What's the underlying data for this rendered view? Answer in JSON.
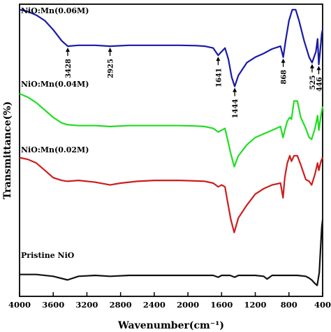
{
  "chart_data": {
    "type": "line",
    "xlabel": "Wavenumber(cm⁻¹)",
    "ylabel": "Transmittance(%)",
    "xlim": [
      4000,
      400
    ],
    "x_reversed": true,
    "x_ticks": [
      4000,
      3600,
      3200,
      2800,
      2400,
      2000,
      1600,
      1200,
      800,
      400
    ],
    "y_ticks": false,
    "grid": false,
    "series": [
      {
        "name": "NiO:Mn(0.06M)",
        "color": "#1a1aa6",
        "points": [
          [
            4000,
            97
          ],
          [
            3900,
            96
          ],
          [
            3800,
            94
          ],
          [
            3700,
            91
          ],
          [
            3600,
            86
          ],
          [
            3500,
            80
          ],
          [
            3428,
            77
          ],
          [
            3300,
            77.5
          ],
          [
            3100,
            77.5
          ],
          [
            2925,
            77
          ],
          [
            2700,
            77.5
          ],
          [
            2400,
            77.5
          ],
          [
            2100,
            77.5
          ],
          [
            1900,
            77.3
          ],
          [
            1800,
            77
          ],
          [
            1700,
            76
          ],
          [
            1641,
            72
          ],
          [
            1600,
            74
          ],
          [
            1560,
            76
          ],
          [
            1520,
            70
          ],
          [
            1480,
            60
          ],
          [
            1444,
            55
          ],
          [
            1400,
            61
          ],
          [
            1300,
            68
          ],
          [
            1200,
            71
          ],
          [
            1100,
            73
          ],
          [
            1000,
            75.5
          ],
          [
            900,
            77
          ],
          [
            868,
            71
          ],
          [
            840,
            80
          ],
          [
            800,
            91
          ],
          [
            760,
            97
          ],
          [
            720,
            97
          ],
          [
            680,
            91
          ],
          [
            620,
            80
          ],
          [
            560,
            71
          ],
          [
            525,
            68
          ],
          [
            480,
            74
          ],
          [
            460,
            81
          ],
          [
            446,
            67
          ],
          [
            430,
            74
          ],
          [
            410,
            84
          ],
          [
            400,
            86
          ]
        ]
      },
      {
        "name": "NiO:Mn(0.04M)",
        "color": "#22dd22",
        "points": [
          [
            4000,
            51
          ],
          [
            3900,
            49
          ],
          [
            3800,
            46
          ],
          [
            3700,
            42
          ],
          [
            3600,
            38
          ],
          [
            3500,
            35
          ],
          [
            3430,
            34
          ],
          [
            3300,
            33.5
          ],
          [
            3100,
            33.5
          ],
          [
            2925,
            33
          ],
          [
            2700,
            33.5
          ],
          [
            2400,
            33.5
          ],
          [
            2100,
            33.5
          ],
          [
            1900,
            33.3
          ],
          [
            1800,
            33
          ],
          [
            1700,
            32
          ],
          [
            1640,
            30
          ],
          [
            1600,
            31
          ],
          [
            1560,
            32
          ],
          [
            1530,
            26
          ],
          [
            1490,
            18
          ],
          [
            1450,
            11
          ],
          [
            1400,
            17
          ],
          [
            1300,
            23
          ],
          [
            1200,
            27
          ],
          [
            1100,
            29
          ],
          [
            1000,
            31
          ],
          [
            900,
            33
          ],
          [
            870,
            27
          ],
          [
            850,
            31
          ],
          [
            820,
            36
          ],
          [
            790,
            38
          ],
          [
            770,
            37
          ],
          [
            740,
            47
          ],
          [
            700,
            47
          ],
          [
            660,
            38
          ],
          [
            600,
            32
          ],
          [
            560,
            27
          ],
          [
            530,
            26
          ],
          [
            490,
            32
          ],
          [
            460,
            39
          ],
          [
            445,
            31
          ],
          [
            420,
            39
          ],
          [
            400,
            44
          ]
        ]
      },
      {
        "name": "NiO:Mn(0.02M)",
        "color": "#cc1e1e",
        "points": [
          [
            4000,
            16
          ],
          [
            3900,
            15
          ],
          [
            3800,
            13
          ],
          [
            3700,
            9
          ],
          [
            3600,
            5
          ],
          [
            3500,
            3.5
          ],
          [
            3430,
            3
          ],
          [
            3300,
            3.5
          ],
          [
            3100,
            2.5
          ],
          [
            2925,
            1
          ],
          [
            2800,
            2
          ],
          [
            2600,
            3
          ],
          [
            2400,
            3.5
          ],
          [
            2100,
            3.5
          ],
          [
            1900,
            3.2
          ],
          [
            1800,
            3
          ],
          [
            1700,
            2
          ],
          [
            1640,
            0
          ],
          [
            1600,
            1
          ],
          [
            1560,
            0
          ],
          [
            1530,
            -8
          ],
          [
            1490,
            -18
          ],
          [
            1450,
            -25
          ],
          [
            1400,
            -17
          ],
          [
            1300,
            -10
          ],
          [
            1200,
            -4
          ],
          [
            1100,
            -1
          ],
          [
            1000,
            1
          ],
          [
            900,
            2
          ],
          [
            870,
            -6
          ],
          [
            850,
            5
          ],
          [
            820,
            13
          ],
          [
            790,
            17
          ],
          [
            770,
            14
          ],
          [
            740,
            17
          ],
          [
            700,
            17
          ],
          [
            660,
            12
          ],
          [
            600,
            4
          ],
          [
            560,
            3
          ],
          [
            530,
            1
          ],
          [
            490,
            7
          ],
          [
            460,
            13
          ],
          [
            445,
            9
          ],
          [
            420,
            14
          ],
          [
            400,
            16
          ]
        ]
      },
      {
        "name": "Pristine NiO",
        "color": "#111111",
        "points": [
          [
            4000,
            -48
          ],
          [
            3800,
            -48
          ],
          [
            3600,
            -49
          ],
          [
            3430,
            -51
          ],
          [
            3300,
            -49
          ],
          [
            3100,
            -48.5
          ],
          [
            2925,
            -49
          ],
          [
            2700,
            -48.5
          ],
          [
            2400,
            -48.5
          ],
          [
            2100,
            -48.5
          ],
          [
            1900,
            -48.5
          ],
          [
            1700,
            -48.5
          ],
          [
            1640,
            -49.5
          ],
          [
            1600,
            -48.5
          ],
          [
            1500,
            -48.5
          ],
          [
            1444,
            -49.5
          ],
          [
            1400,
            -48.5
          ],
          [
            1200,
            -48.5
          ],
          [
            1100,
            -49
          ],
          [
            1060,
            -50.5
          ],
          [
            1000,
            -48.5
          ],
          [
            900,
            -48.5
          ],
          [
            800,
            -48.5
          ],
          [
            700,
            -48.5
          ],
          [
            600,
            -49
          ],
          [
            560,
            -50
          ],
          [
            530,
            -51
          ],
          [
            490,
            -53
          ],
          [
            465,
            -54
          ],
          [
            440,
            -47
          ],
          [
            420,
            -30
          ],
          [
            410,
            -22
          ],
          [
            400,
            -18
          ]
        ]
      }
    ],
    "annotations": [
      {
        "label": "3428",
        "x": 3428,
        "series": 0
      },
      {
        "label": "2925",
        "x": 2925,
        "series": 0
      },
      {
        "label": "1641",
        "x": 1641,
        "series": 0
      },
      {
        "label": "1444",
        "x": 1444,
        "series": 0
      },
      {
        "label": "868",
        "x": 868,
        "series": 0
      },
      {
        "label": "525",
        "x": 525,
        "series": 0
      },
      {
        "label": "446",
        "x": 446,
        "series": 0
      }
    ]
  }
}
